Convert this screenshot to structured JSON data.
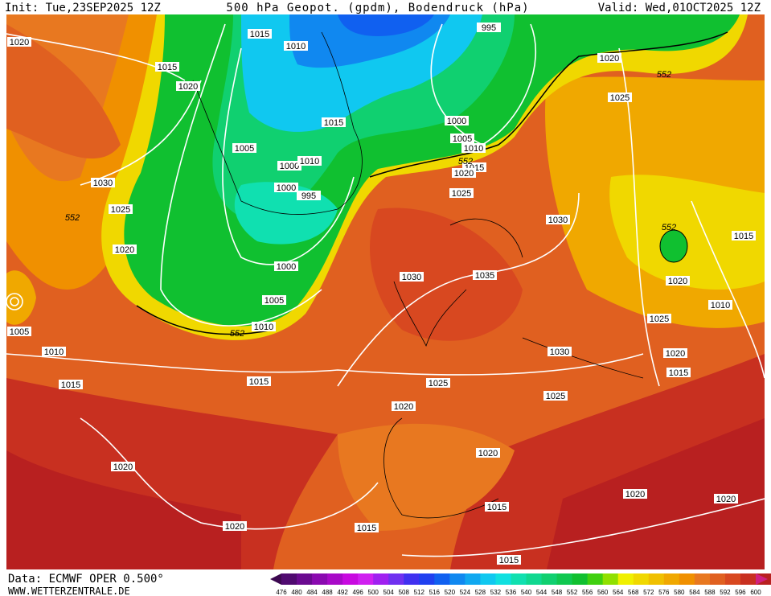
{
  "header": {
    "init": "Init: Tue,23SEP2025 12Z",
    "title": "500 hPa Geopot. (gpdm), Bodendruck (hPa)",
    "valid": "Valid: Wed,01OCT2025 12Z"
  },
  "footer": {
    "source": "Data: ECMWF OPER 0.500°",
    "website": "WWW.WETTERZENTRALE.DE"
  },
  "colorbar": {
    "ticks": [
      476,
      480,
      484,
      488,
      492,
      496,
      500,
      504,
      508,
      512,
      516,
      520,
      524,
      528,
      532,
      536,
      540,
      544,
      548,
      552,
      556,
      560,
      564,
      568,
      572,
      576,
      580,
      584,
      588,
      592,
      596,
      600
    ],
    "colors": [
      "#3c0850",
      "#500a70",
      "#6a0a90",
      "#8a0ab0",
      "#a80ac8",
      "#c80ae0",
      "#d020f0",
      "#a020f0",
      "#7030f0",
      "#4030f0",
      "#2040f0",
      "#1060f0",
      "#1088f0",
      "#10a8f0",
      "#10c8f0",
      "#10e0e0",
      "#10e0b0",
      "#10d890",
      "#10d070",
      "#10c850",
      "#10c030",
      "#40d010",
      "#90e000",
      "#f0f000",
      "#f0d800",
      "#f0c000",
      "#f0a800",
      "#f09000",
      "#e87820",
      "#e06020",
      "#d84820",
      "#c83020",
      "#b82020",
      "#a01820",
      "#d02080"
    ]
  },
  "isobar_labels": [
    "1015",
    "1010",
    "995",
    "1020",
    "1015",
    "1020",
    "1020",
    "1025",
    "1015",
    "1000",
    "1005",
    "1010",
    "1005",
    "1000",
    "1010",
    "1015",
    "1020",
    "1030",
    "1000",
    "995",
    "1025",
    "1025",
    "1030",
    "1015",
    "1020",
    "1000",
    "1030",
    "1035",
    "1020",
    "1005",
    "1010",
    "1010",
    "1005",
    "1025",
    "1010",
    "1030",
    "1020",
    "1015",
    "1015",
    "1015",
    "1025",
    "1025",
    "1020",
    "1020",
    "1020",
    "1020",
    "1015",
    "1020",
    "1020",
    "1015",
    "1015"
  ],
  "height_labels": [
    "552",
    "552",
    "552",
    "552",
    "552"
  ]
}
